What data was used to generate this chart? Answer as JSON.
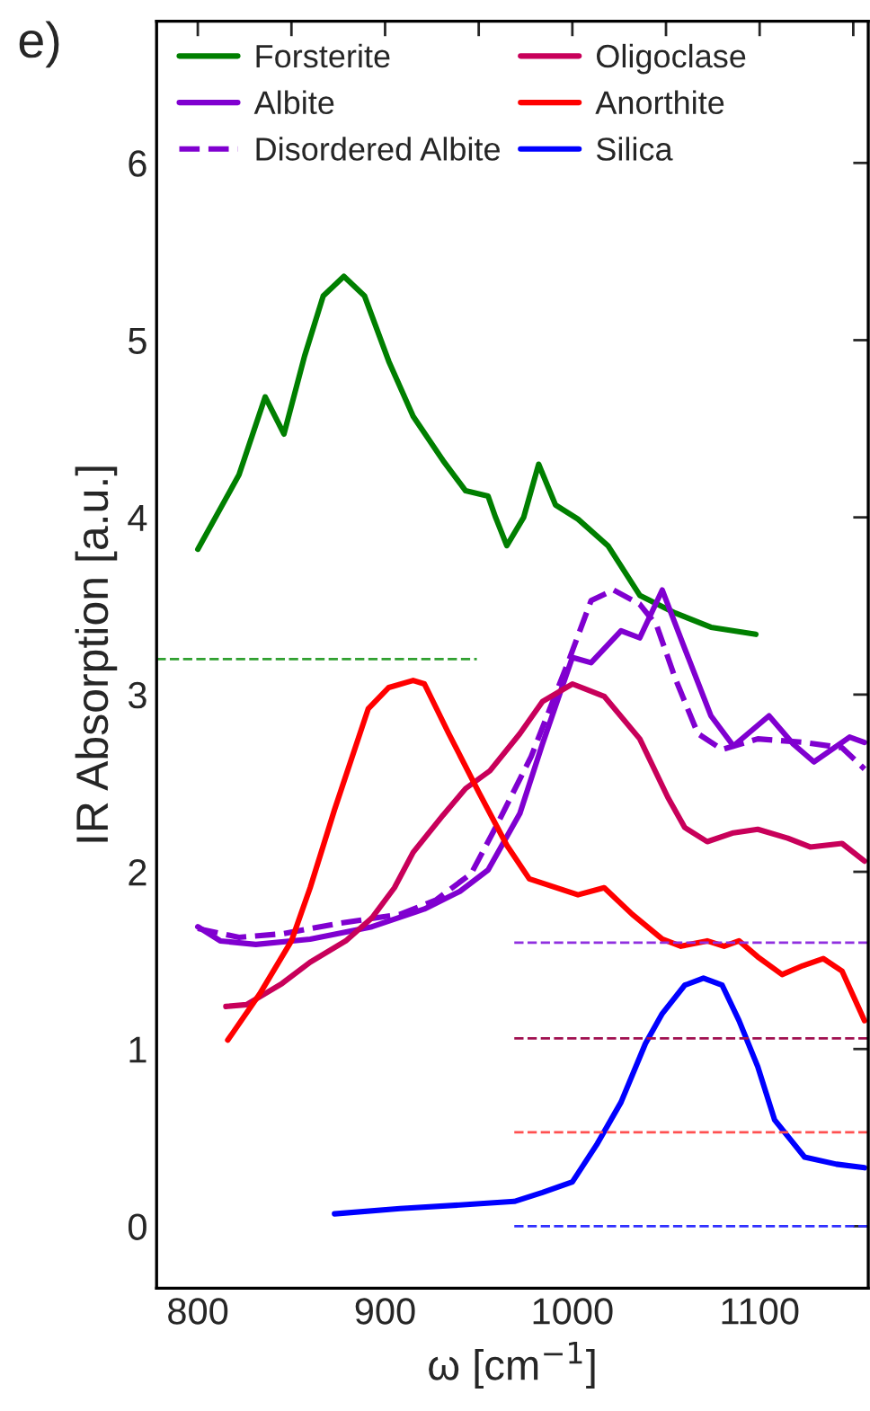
{
  "chart_data": {
    "type": "line",
    "xlabel": "ω [cm$^{−1}$]",
    "ylabel": "IR Absorption [a.u.]",
    "annotations": [
      "e)"
    ],
    "xlim": [
      778,
      1158
    ],
    "ylim": [
      -0.35,
      6.8
    ],
    "xticks": [
      800,
      {
        "value": 850,
        "label": null
      },
      900,
      {
        "value": 950,
        "label": null
      },
      1000,
      {
        "value": 1050,
        "label": null
      },
      1100,
      {
        "value": 1150,
        "label": null
      }
    ],
    "yticks": [
      0,
      1,
      2,
      3,
      4,
      5,
      6
    ],
    "grid": false,
    "legend": "top left",
    "line_style": "solid",
    "marker": "none",
    "series": [
      {
        "name": "Forsterite",
        "color": "#007f00",
        "x": [
          800,
          822,
          836,
          846,
          857,
          867,
          878,
          889,
          902,
          915,
          931,
          943,
          955,
          959,
          965,
          974,
          982,
          991,
          1003,
          1019,
          1036,
          1055,
          1074,
          1098
        ],
        "values": [
          3.82,
          4.24,
          4.68,
          4.47,
          4.91,
          5.25,
          5.36,
          5.25,
          4.88,
          4.57,
          4.32,
          4.15,
          4.12,
          4.0,
          3.84,
          4.0,
          4.3,
          4.07,
          3.99,
          3.84,
          3.56,
          3.46,
          3.38,
          3.34
        ]
      },
      {
        "name": "Albite",
        "color": "#8000d0",
        "x": [
          800,
          812,
          831,
          860,
          893,
          921,
          940,
          955,
          972,
          984,
          1000,
          1010,
          1026,
          1036,
          1048,
          1060,
          1074,
          1086,
          1105,
          1118,
          1129,
          1148,
          1156
        ],
        "values": [
          1.69,
          1.61,
          1.59,
          1.62,
          1.69,
          1.79,
          1.89,
          2.01,
          2.33,
          2.72,
          3.21,
          3.18,
          3.36,
          3.32,
          3.59,
          3.26,
          2.88,
          2.71,
          2.88,
          2.72,
          2.62,
          2.76,
          2.73
        ]
      },
      {
        "name": "Disordered Albite",
        "color": "#8000d0",
        "line_style": "dashed",
        "x": [
          800,
          822,
          845,
          876,
          908,
          927,
          946,
          959,
          978,
          998,
          1010,
          1022,
          1036,
          1045,
          1055,
          1067,
          1080,
          1099,
          1124,
          1144,
          1156
        ],
        "values": [
          1.68,
          1.63,
          1.65,
          1.71,
          1.76,
          1.84,
          1.99,
          2.25,
          2.65,
          3.19,
          3.53,
          3.59,
          3.51,
          3.39,
          3.09,
          2.78,
          2.69,
          2.75,
          2.73,
          2.7,
          2.58
        ]
      },
      {
        "name": "Oligoclase",
        "color": "#c8005a",
        "x": [
          815,
          826,
          845,
          860,
          879,
          893,
          905,
          915,
          931,
          943,
          956,
          972,
          984,
          1000,
          1017,
          1036,
          1051,
          1060,
          1072,
          1086,
          1099,
          1115,
          1127,
          1144,
          1156
        ],
        "values": [
          1.24,
          1.25,
          1.37,
          1.49,
          1.61,
          1.74,
          1.91,
          2.11,
          2.32,
          2.47,
          2.57,
          2.78,
          2.96,
          3.06,
          2.99,
          2.75,
          2.42,
          2.25,
          2.17,
          2.22,
          2.24,
          2.19,
          2.14,
          2.16,
          2.06
        ]
      },
      {
        "name": "Anorthite",
        "color": "#ff0000",
        "x": [
          816,
          833,
          850,
          860,
          873,
          891,
          902,
          915,
          921,
          934,
          950,
          965,
          977,
          1003,
          1017,
          1032,
          1048,
          1058,
          1072,
          1081,
          1089,
          1099,
          1112,
          1123,
          1134,
          1144,
          1156
        ],
        "values": [
          1.05,
          1.31,
          1.61,
          1.91,
          2.35,
          2.92,
          3.04,
          3.08,
          3.06,
          2.78,
          2.45,
          2.15,
          1.96,
          1.87,
          1.91,
          1.76,
          1.62,
          1.58,
          1.61,
          1.58,
          1.61,
          1.52,
          1.42,
          1.47,
          1.51,
          1.44,
          1.16
        ]
      },
      {
        "name": "Silica",
        "color": "#0000ff",
        "x": [
          873,
          908,
          940,
          969,
          984,
          1000,
          1013,
          1026,
          1039,
          1048,
          1060,
          1070,
          1080,
          1089,
          1099,
          1108,
          1124,
          1141,
          1156
        ],
        "values": [
          0.07,
          0.1,
          0.12,
          0.14,
          0.19,
          0.25,
          0.46,
          0.7,
          1.03,
          1.2,
          1.36,
          1.4,
          1.36,
          1.16,
          0.9,
          0.6,
          0.39,
          0.35,
          0.33
        ]
      },
      {
        "type": "line",
        "line_style": "dashed",
        "color": "#30a030",
        "x": [
          778,
          949
        ],
        "values": [
          3.2,
          3.2
        ]
      },
      {
        "type": "line",
        "line_style": "dashed",
        "color": "#9030e0",
        "x": [
          969,
          1158
        ],
        "values": [
          1.6,
          1.6
        ]
      },
      {
        "type": "line",
        "line_style": "dashed",
        "color": "#a01050",
        "x": [
          969,
          1158
        ],
        "values": [
          1.06,
          1.06
        ]
      },
      {
        "type": "line",
        "line_style": "dashed",
        "color": "#ff5050",
        "x": [
          969,
          1158
        ],
        "values": [
          0.53,
          0.53
        ]
      },
      {
        "type": "line",
        "line_style": "dashed",
        "color": "#3030ff",
        "x": [
          969,
          1158
        ],
        "values": [
          0,
          0
        ]
      }
    ]
  }
}
